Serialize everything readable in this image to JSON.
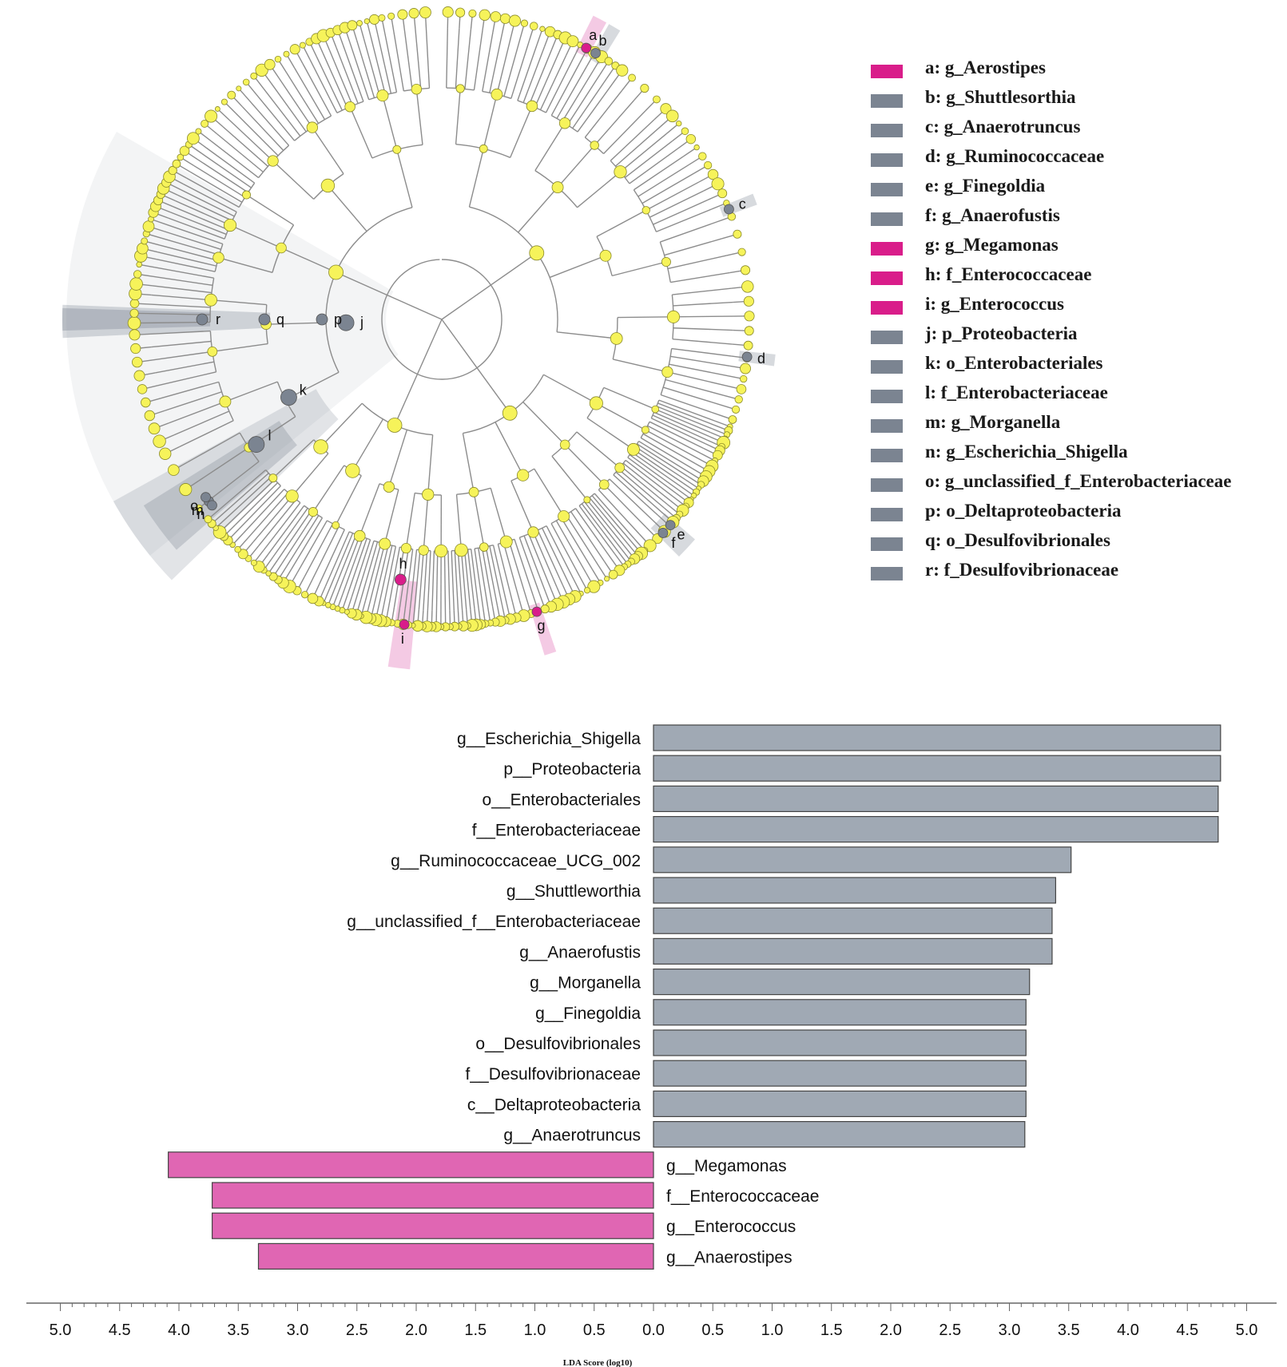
{
  "colors": {
    "enriched_group": "#e066b3",
    "depleted_group": "#a0a9b4",
    "legend_pink": "#d91d8a",
    "legend_gray": "#7b8491",
    "node_yellow": "#f6f35a",
    "branch": "#8c8c8c"
  },
  "legend": {
    "items": [
      {
        "label": "a: g_Aerostipes",
        "group": "pink"
      },
      {
        "label": "b: g_Shuttlesorthia",
        "group": "gray"
      },
      {
        "label": "c: g_Anaerotruncus",
        "group": "gray"
      },
      {
        "label": "d: g_Ruminococcaceae",
        "group": "gray"
      },
      {
        "label": "e: g_Finegoldia",
        "group": "gray"
      },
      {
        "label": "f: g_Anaerofustis",
        "group": "gray"
      },
      {
        "label": "g: g_Megamonas",
        "group": "pink"
      },
      {
        "label": "h: f_Enterococcaceae",
        "group": "pink"
      },
      {
        "label": "i: g_Enterococcus",
        "group": "pink"
      },
      {
        "label": "j: p_Proteobacteria",
        "group": "gray"
      },
      {
        "label": "k: o_Enterobacteriales",
        "group": "gray"
      },
      {
        "label": "l: f_Enterobacteriaceae",
        "group": "gray"
      },
      {
        "label": "m: g_Morganella",
        "group": "gray"
      },
      {
        "label": "n: g_Escherichia_Shigella",
        "group": "gray"
      },
      {
        "label": "o: g_unclassified_f_Enterobacteriaceae",
        "group": "gray"
      },
      {
        "label": "p: o_Deltaproteobacteria",
        "group": "gray"
      },
      {
        "label": "q: o_Desulfovibrionales",
        "group": "gray"
      },
      {
        "label": "r: f_Desulfovibrionaceae",
        "group": "gray"
      }
    ]
  },
  "cladogram": {
    "markers": [
      {
        "letter": "a",
        "group": "pink",
        "angle_deg": -62,
        "depth": "leaf"
      },
      {
        "letter": "b",
        "group": "gray",
        "angle_deg": -60,
        "depth": "leaf"
      },
      {
        "letter": "c",
        "group": "gray",
        "angle_deg": -21,
        "depth": "leaf"
      },
      {
        "letter": "d",
        "group": "gray",
        "angle_deg": 7,
        "depth": "leaf"
      },
      {
        "letter": "e",
        "group": "gray",
        "angle_deg": 42,
        "depth": "leaf"
      },
      {
        "letter": "f",
        "group": "gray",
        "angle_deg": 44,
        "depth": "leaf"
      },
      {
        "letter": "g",
        "group": "pink",
        "angle_deg": 72,
        "depth": "leaf"
      },
      {
        "letter": "h",
        "group": "pink",
        "angle_deg": 99,
        "depth": "family"
      },
      {
        "letter": "i",
        "group": "pink",
        "angle_deg": 97,
        "depth": "leaf"
      },
      {
        "letter": "j",
        "group": "gray",
        "angle_deg": 178,
        "depth": "phylum"
      },
      {
        "letter": "k",
        "group": "gray",
        "angle_deg": 153,
        "depth": "order"
      },
      {
        "letter": "l",
        "group": "gray",
        "angle_deg": 146,
        "depth": "family"
      },
      {
        "letter": "m",
        "group": "gray",
        "angle_deg": 142,
        "depth": "leaf"
      },
      {
        "letter": "n",
        "group": "gray",
        "angle_deg": 141,
        "depth": "leaf"
      },
      {
        "letter": "o",
        "group": "gray",
        "angle_deg": 143,
        "depth": "leaf"
      },
      {
        "letter": "p",
        "group": "gray",
        "angle_deg": 180,
        "depth": "order"
      },
      {
        "letter": "q",
        "group": "gray",
        "angle_deg": 180,
        "depth": "family"
      },
      {
        "letter": "r",
        "group": "gray",
        "angle_deg": 180,
        "depth": "genus"
      }
    ]
  },
  "chart_data": {
    "type": "bar",
    "orientation": "horizontal",
    "xlabel": "LDA Score (log10)",
    "xlim": [
      -5.0,
      5.0
    ],
    "xticks": [
      "5.0",
      "4.5",
      "4.0",
      "3.5",
      "3.0",
      "2.5",
      "2.0",
      "1.5",
      "1.0",
      "0.5",
      "0.0",
      "0.5",
      "1.0",
      "1.5",
      "2.0",
      "2.5",
      "3.0",
      "3.5",
      "4.0",
      "4.5",
      "5.0"
    ],
    "categories": [
      "g__Escherichia_Shigella",
      "p__Proteobacteria",
      "o__Enterobacteriales",
      "f__Enterobacteriaceae",
      "g__Ruminococcaceae_UCG_002",
      "g__Shuttleworthia",
      "g__unclassified_f__Enterobacteriaceae",
      "g__Anaerofustis",
      "g__Morganella",
      "g__Finegoldia",
      "o__Desulfovibrionales",
      "f__Desulfovibrionaceae",
      "c__Deltaproteobacteria",
      "g__Anaerotruncus",
      "g__Megamonas",
      "f__Enterococcaceae",
      "g__Enterococcus",
      "g__Anaerostipes"
    ],
    "values": [
      4.78,
      4.78,
      4.76,
      4.76,
      3.52,
      3.39,
      3.36,
      3.36,
      3.17,
      3.14,
      3.14,
      3.14,
      3.14,
      3.13,
      -4.09,
      -3.72,
      -3.72,
      -3.33
    ],
    "groups": [
      "gray",
      "gray",
      "gray",
      "gray",
      "gray",
      "gray",
      "gray",
      "gray",
      "gray",
      "gray",
      "gray",
      "gray",
      "gray",
      "gray",
      "pink",
      "pink",
      "pink",
      "pink"
    ]
  }
}
